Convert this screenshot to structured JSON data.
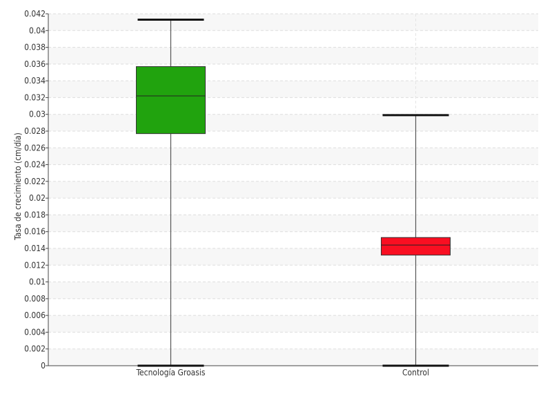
{
  "chart_data": {
    "type": "box",
    "title": "",
    "xlabel": "",
    "ylabel": "Tasa de crecimiento (cm/día)",
    "ylim": [
      0,
      0.042
    ],
    "yticks": [
      "0",
      "0.002",
      "0.004",
      "0.006",
      "0.008",
      "0.01",
      "0.012",
      "0.014",
      "0.016",
      "0.018",
      "0.02",
      "0.022",
      "0.024",
      "0.026",
      "0.028",
      "0.03",
      "0.032",
      "0.034",
      "0.036",
      "0.038",
      "0.04",
      "0.042"
    ],
    "categories": [
      "Tecnología Groasis",
      "Control"
    ],
    "series": [
      {
        "category": "Tecnología Groasis",
        "min": 0.0,
        "q1": 0.0277,
        "median": 0.0322,
        "q3": 0.0357,
        "max": 0.0413,
        "color": "#21a30e"
      },
      {
        "category": "Control",
        "min": 0.0,
        "q1": 0.0132,
        "median": 0.0144,
        "q3": 0.0153,
        "max": 0.0299,
        "color": "#f90f22"
      }
    ],
    "grid": true,
    "legend": "none"
  }
}
